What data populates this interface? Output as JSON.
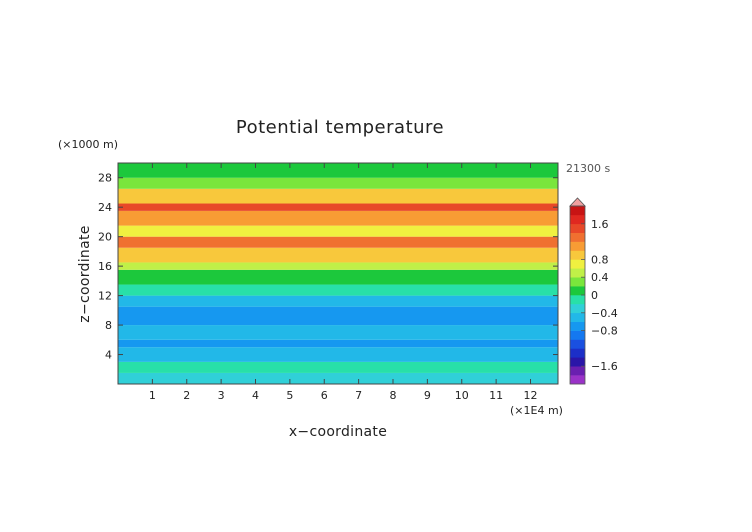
{
  "chart_data": {
    "type": "heatmap",
    "title": "Potential temperature",
    "xlabel": "x−coordinate",
    "ylabel": "z−coordinate",
    "x_unit": "(×1E4 m)",
    "y_unit": "(×1000 m)",
    "time_label": "21300 s",
    "xlim": [
      0,
      12.8
    ],
    "ylim": [
      0,
      30
    ],
    "x_ticks": [
      "1",
      "2",
      "3",
      "4",
      "5",
      "6",
      "7",
      "8",
      "9",
      "10",
      "11",
      "12"
    ],
    "y_ticks": [
      "4",
      "8",
      "12",
      "16",
      "20",
      "24",
      "28"
    ],
    "colorbar": {
      "range": [
        -2.0,
        2.0
      ],
      "step": 0.2,
      "tick_labels": [
        "1.6",
        "0.8",
        "0.4",
        "0",
        "−0.4",
        "−0.8",
        "−1.6"
      ],
      "tick_values": [
        1.6,
        0.8,
        0.4,
        0,
        -0.4,
        -0.8,
        -1.6
      ],
      "extend": "max"
    },
    "colors": {
      "-2.0": "#9a32c8",
      "-1.8": "#6a1fb0",
      "-1.6": "#2a16a8",
      "-1.4": "#1c2fc8",
      "-1.2": "#1a50e0",
      "-1.0": "#1478f0",
      "-0.8": "#1698f0",
      "-0.6": "#22b8e8",
      "-0.4": "#30d0d8",
      "-0.2": "#28e0a8",
      "0.0": "#1cc83c",
      "0.2": "#7ae63c",
      "0.4": "#c0f048",
      "0.6": "#f0f040",
      "0.8": "#f8c83c",
      "1.0": "#f89c34",
      "1.2": "#f07030",
      "1.4": "#e84828",
      "1.6": "#e02820",
      "1.8": "#c81414"
    },
    "field": {
      "layers": [
        {
          "z_min": 0,
          "z_max": 1.5,
          "value": -0.3
        },
        {
          "z_min": 1.5,
          "z_max": 3.0,
          "value": -0.1
        },
        {
          "z_min": 3.0,
          "z_max": 5.0,
          "value": -0.5
        },
        {
          "z_min": 5.0,
          "z_max": 6.0,
          "value": -0.7
        },
        {
          "z_min": 6.0,
          "z_max": 8.0,
          "value": -0.5
        },
        {
          "z_min": 8.0,
          "z_max": 10.5,
          "value": -0.7
        },
        {
          "z_min": 10.5,
          "z_max": 12.0,
          "value": -0.5
        },
        {
          "z_min": 12.0,
          "z_max": 13.5,
          "value": -0.1
        },
        {
          "z_min": 13.5,
          "z_max": 15.5,
          "value": 0.1
        },
        {
          "z_min": 15.5,
          "z_max": 16.5,
          "value": 0.5
        },
        {
          "z_min": 16.5,
          "z_max": 18.5,
          "value": 0.9
        },
        {
          "z_min": 18.5,
          "z_max": 20.0,
          "value": 1.3
        },
        {
          "z_min": 20.0,
          "z_max": 21.5,
          "value": 0.7
        },
        {
          "z_min": 21.5,
          "z_max": 23.5,
          "value": 1.1
        },
        {
          "z_min": 23.5,
          "z_max": 24.5,
          "value": 1.5
        },
        {
          "z_min": 24.5,
          "z_max": 26.5,
          "value": 0.9
        },
        {
          "z_min": 26.5,
          "z_max": 28.0,
          "value": 0.3
        },
        {
          "z_min": 28.0,
          "z_max": 30.0,
          "value": 0.1
        }
      ]
    }
  }
}
